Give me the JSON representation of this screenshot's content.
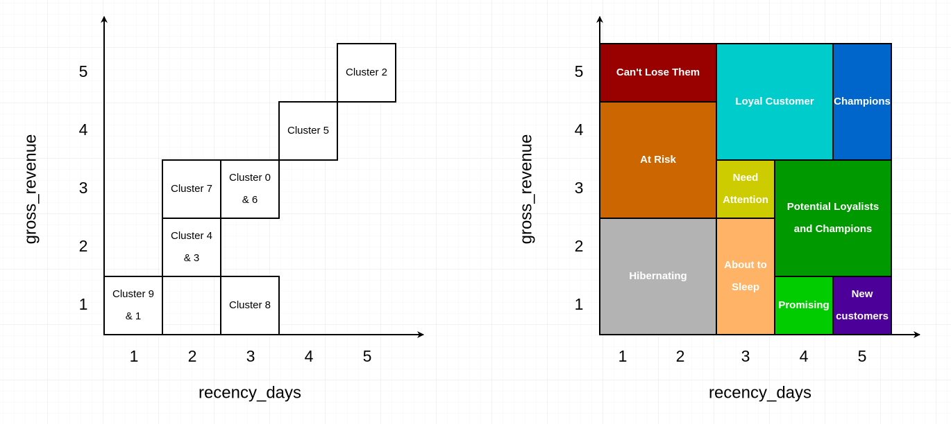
{
  "left": {
    "x_axis_title": "recency_days",
    "y_axis_title": "gross_revenue",
    "x_labels": [
      "1",
      "2",
      "3",
      "4",
      "5"
    ],
    "y_labels": [
      "1",
      "2",
      "3",
      "4",
      "5"
    ],
    "boxes": [
      {
        "lines": [
          "Cluster 9",
          "& 1"
        ]
      },
      {
        "lines": [
          "Cluster 8"
        ]
      },
      {
        "lines": [
          "Cluster 4",
          "& 3"
        ]
      },
      {
        "lines": [
          "Cluster 7"
        ]
      },
      {
        "lines": [
          "Cluster 0",
          "& 6"
        ]
      },
      {
        "lines": [
          "Cluster 5"
        ]
      },
      {
        "lines": [
          "Cluster 2"
        ]
      }
    ]
  },
  "right": {
    "x_axis_title": "recency_days",
    "y_axis_title": "gross_revenue",
    "x_labels": [
      "1",
      "2",
      "3",
      "4",
      "5"
    ],
    "y_labels": [
      "1",
      "2",
      "3",
      "4",
      "5"
    ],
    "segments": [
      {
        "lines": [
          "Can't Lose Them"
        ],
        "color": "#990000"
      },
      {
        "lines": [
          "At Risk"
        ],
        "color": "#cc6600"
      },
      {
        "lines": [
          "Hibernating"
        ],
        "color": "#b3b3b3"
      },
      {
        "lines": [
          "Loyal Customer"
        ],
        "color": "#00cccc"
      },
      {
        "lines": [
          "Champions"
        ],
        "color": "#0066cc"
      },
      {
        "lines": [
          "Need",
          "Attention"
        ],
        "color": "#cccc00"
      },
      {
        "lines": [
          "Potential Loyalists",
          "and Champions"
        ],
        "color": "#009900"
      },
      {
        "lines": [
          "About to",
          "Sleep"
        ],
        "color": "#ffb366"
      },
      {
        "lines": [
          "Promising"
        ],
        "color": "#00cc00"
      },
      {
        "lines": [
          "New",
          "customers"
        ],
        "color": "#4c0099"
      }
    ]
  }
}
